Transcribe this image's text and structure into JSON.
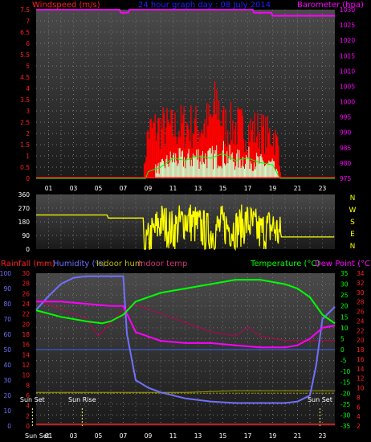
{
  "chart_data": [
    {
      "type": "line",
      "panel": "wind-barometer",
      "title": "24 hour graph day : 08 July 2014",
      "ylabel_left": "Windspeed (m/s)",
      "ylabel_right": "Barometer (hpa)",
      "left_ticks": [
        "7.5",
        "7",
        "6.5",
        "6",
        "5.5",
        "5",
        "4.5",
        "4",
        "3.5",
        "3",
        "2.5",
        "2",
        "1.5",
        "1",
        "0.5",
        "0"
      ],
      "right_ticks": [
        "1030",
        "1025",
        "1020",
        "1015",
        "1010",
        "1005",
        "1000",
        "995",
        "990",
        "985",
        "980",
        "975"
      ],
      "ylim_left": [
        0,
        7.5
      ],
      "ylim_right": [
        975,
        1030
      ],
      "x_ticks": [
        "01",
        "03",
        "05",
        "07",
        "09",
        "11",
        "13",
        "15",
        "17",
        "19",
        "21",
        "23"
      ],
      "grid": true,
      "series": [
        {
          "key": "barometer",
          "axis": "right",
          "color": "#ff00ff",
          "x": [
            0,
            6.7,
            6.8,
            7.4,
            7.5,
            7.9,
            8.0,
            17.4,
            17.5,
            18.9,
            19.0,
            24
          ],
          "y": [
            1030,
            1030,
            1029,
            1029,
            1030,
            1030,
            1030,
            1030,
            1029,
            1029,
            1028,
            1028
          ]
        },
        {
          "key": "gust",
          "axis": "left",
          "color": "#ff0000",
          "x": [
            0,
            8.6,
            8.8,
            9,
            10,
            11,
            12,
            13,
            14,
            14.6,
            15,
            16,
            17,
            18,
            18.7,
            19,
            19.5,
            19.7,
            24
          ],
          "y": [
            0,
            0,
            1.2,
            2.2,
            2.4,
            2.3,
            2.5,
            2.4,
            2.6,
            3.6,
            2.5,
            2.4,
            2.3,
            2.2,
            2.0,
            2.1,
            1.5,
            0,
            0
          ]
        },
        {
          "key": "average",
          "axis": "left",
          "color": "#00ff00",
          "x": [
            0,
            8.8,
            9,
            10,
            11,
            12,
            13,
            14,
            15,
            16,
            17,
            18,
            19,
            19.6,
            24
          ],
          "y": [
            0,
            0,
            0.3,
            0.5,
            0.9,
            0.8,
            1.0,
            0.9,
            1.1,
            0.8,
            0.9,
            0.7,
            0.6,
            0,
            0
          ]
        }
      ]
    },
    {
      "type": "line",
      "panel": "wind-direction",
      "ylabel_left": "",
      "left_ticks": [
        "360",
        "270",
        "180",
        "90",
        "0"
      ],
      "right_labels": [
        "N",
        "W",
        "S",
        "E",
        "N"
      ],
      "ylim": [
        0,
        360
      ],
      "series": [
        {
          "key": "direction",
          "color": "#ffff00",
          "x": [
            0,
            5.7,
            5.8,
            8.6,
            8.7,
            9.3,
            10,
            11,
            12,
            13,
            14,
            15,
            16,
            17,
            18,
            19,
            19.7,
            19.8,
            24
          ],
          "y": [
            225,
            225,
            205,
            205,
            0,
            90,
            180,
            120,
            200,
            150,
            100,
            160,
            130,
            180,
            110,
            150,
            80,
            80,
            80
          ]
        }
      ]
    },
    {
      "type": "line",
      "panel": "temp-humidity",
      "legend": [
        "Rainfall (mm)",
        "Humidity (%)",
        "Indoor hum",
        "Indoor temp",
        "Temperature (°C)",
        "Dew Point (°C)"
      ],
      "left_ticks_humidity": [
        "100",
        "90",
        "80",
        "70",
        "60",
        "50",
        "40",
        "30",
        "20",
        "10",
        "0"
      ],
      "left_ticks_rain": [
        "30",
        "28",
        "26",
        "24",
        "22",
        "20",
        "18",
        "16",
        "14",
        "12",
        "10",
        "8",
        "6",
        "4",
        "2",
        "0"
      ],
      "right_ticks_temp": [
        "35",
        "30",
        "25",
        "20",
        "15",
        "10",
        "5",
        "0",
        "-5",
        "-10",
        "-15",
        "-20",
        "-25",
        "-30",
        "-35"
      ],
      "right_ticks_indoor": [
        "34",
        "32",
        "30",
        "28",
        "26",
        "24",
        "22",
        "20",
        "18",
        "16",
        "14",
        "12",
        "10",
        "8",
        "6",
        "4",
        "2"
      ],
      "ylim_temp": [
        -35,
        35
      ],
      "ylim_humidity": [
        0,
        100
      ],
      "annotations": [
        {
          "label": "Sun Set",
          "hour": -0.3
        },
        {
          "label": "Sun Rise",
          "hour": 3.7
        },
        {
          "label": "Sun Set",
          "hour": 22.8
        }
      ],
      "series": [
        {
          "key": "temperature",
          "color": "#00ff00",
          "x": [
            0,
            2,
            4,
            5.3,
            6,
            7,
            8,
            10,
            12,
            14,
            16,
            18,
            20,
            21,
            22,
            23,
            24
          ],
          "y": [
            18,
            15,
            13,
            12,
            13,
            16,
            22,
            26,
            28,
            30,
            32,
            32,
            30,
            28,
            24,
            16,
            12
          ]
        },
        {
          "key": "humidity",
          "color": "#7070ff",
          "x": [
            0,
            1,
            2,
            3,
            4,
            5,
            6,
            7,
            7.3,
            8,
            9,
            10,
            12,
            14,
            16,
            18,
            20,
            21,
            22,
            22.5,
            23,
            24
          ],
          "y": [
            76,
            85,
            93,
            97,
            98,
            98,
            98,
            98,
            60,
            30,
            25,
            22,
            18,
            16,
            15,
            15,
            15,
            16,
            20,
            40,
            70,
            78
          ]
        },
        {
          "key": "dew_point",
          "color": "#ff00ff",
          "x": [
            0,
            2,
            4,
            6,
            7,
            8,
            10,
            12,
            14,
            16,
            18,
            20,
            21,
            22,
            23,
            24
          ],
          "y": [
            22,
            22,
            21,
            20,
            20,
            8,
            4,
            3,
            3,
            2,
            1,
            1,
            2,
            5,
            10,
            11
          ]
        },
        {
          "key": "indoor_temp",
          "color": "#bb0055",
          "x": [
            0,
            2,
            4,
            5,
            6,
            7,
            8,
            10,
            12,
            14,
            16,
            17,
            18,
            20,
            22,
            24
          ],
          "y": [
            30,
            28,
            26,
            22,
            25,
            28,
            29,
            27,
            25,
            23,
            22,
            24,
            22,
            21,
            21,
            21
          ]
        },
        {
          "key": "indoor_hum",
          "color": "#999900",
          "x": [
            0,
            4,
            8,
            12,
            16,
            20,
            24
          ],
          "y": [
            22,
            22,
            22,
            22,
            23,
            23,
            23
          ]
        },
        {
          "key": "rainfall",
          "color": "#ff0000",
          "x": [
            0,
            24
          ],
          "y": [
            0,
            0
          ]
        }
      ]
    }
  ],
  "footer": {
    "sunset_label": "Sun Set"
  }
}
